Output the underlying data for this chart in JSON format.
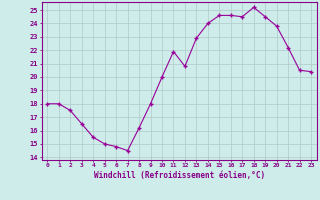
{
  "x": [
    0,
    1,
    2,
    3,
    4,
    5,
    6,
    7,
    8,
    9,
    10,
    11,
    12,
    13,
    14,
    15,
    16,
    17,
    18,
    19,
    20,
    21,
    22,
    23
  ],
  "y": [
    18,
    18,
    17.5,
    16.5,
    15.5,
    15,
    14.8,
    14.5,
    16.2,
    18,
    20,
    21.9,
    20.8,
    22.9,
    24,
    24.6,
    24.6,
    24.5,
    25.2,
    24.5,
    23.8,
    22.2,
    20.5,
    20.4
  ],
  "line_color": "#990099",
  "marker": "P",
  "marker_size": 2.5,
  "background_color": "#ceecea",
  "grid_color": "#b0c8c8",
  "xlabel": "Windchill (Refroidissement éolien,°C)",
  "xlabel_color": "#880088",
  "tick_color": "#880088",
  "ylim": [
    13.8,
    25.6
  ],
  "xlim": [
    -0.5,
    23.5
  ],
  "yticks": [
    14,
    15,
    16,
    17,
    18,
    19,
    20,
    21,
    22,
    23,
    24,
    25
  ],
  "xticks": [
    0,
    1,
    2,
    3,
    4,
    5,
    6,
    7,
    8,
    9,
    10,
    11,
    12,
    13,
    14,
    15,
    16,
    17,
    18,
    19,
    20,
    21,
    22,
    23
  ],
  "spine_color": "#880088"
}
